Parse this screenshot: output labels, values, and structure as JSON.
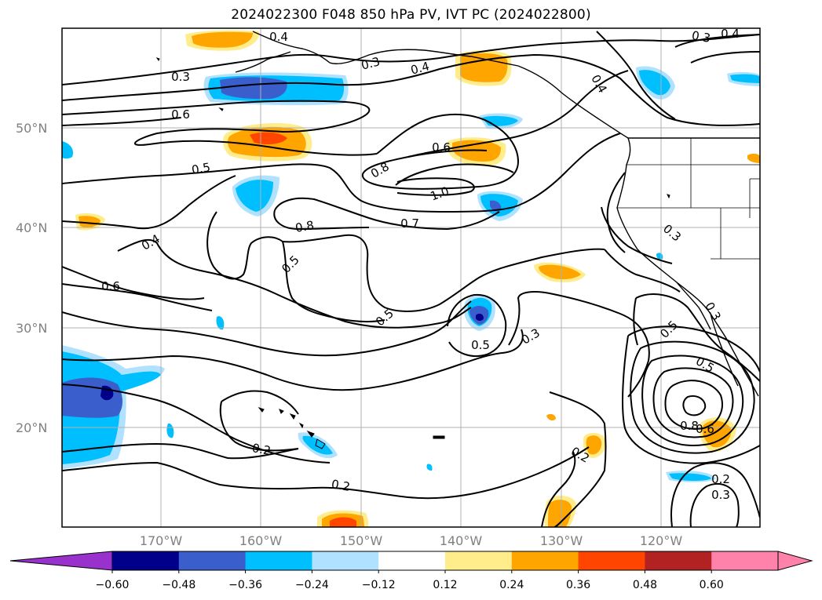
{
  "title": "2024022300 F048 850 hPa PV, IVT PC (2024022800)",
  "axes": {
    "lat_labels": [
      "50°N",
      "40°N",
      "30°N",
      "20°N"
    ],
    "lon_labels": [
      "170°W",
      "160°W",
      "150°W",
      "140°W",
      "130°W",
      "120°W"
    ]
  },
  "colorbar": {
    "tick_labels": [
      "−0.60",
      "−0.48",
      "−0.36",
      "−0.24",
      "−0.12",
      "0.12",
      "0.24",
      "0.36",
      "0.48",
      "0.60"
    ],
    "colors": [
      "#9932cc",
      "#00008b",
      "#3a5fcd",
      "#00bfff",
      "#b0e2ff",
      "#ffffff",
      "#ffec8b",
      "#ffa500",
      "#ff4500",
      "#b22222",
      "#ff82ab"
    ]
  },
  "contour_labels": [
    "0.4",
    "0.3",
    "0.3",
    "0.4",
    "0.3",
    "0.4",
    "0.4",
    "0.6",
    "0.6",
    "0.5",
    "0.8",
    "1.0",
    "0.7",
    "0.8",
    "0.4",
    "0.5",
    "0.6",
    "0.5",
    "0.5",
    "0.3",
    "0.3",
    "0.5",
    "0.5",
    "0.3",
    "0.8",
    "0.6",
    "0.2",
    "0.2",
    "0.2",
    "0.2",
    "0.3"
  ]
}
